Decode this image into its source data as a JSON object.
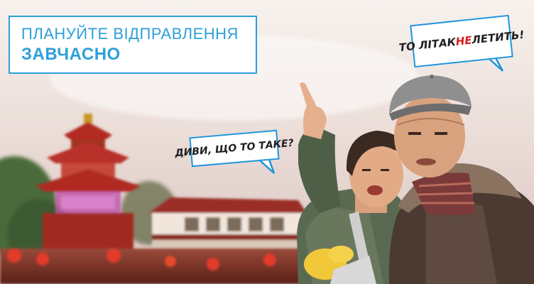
{
  "headline": {
    "line1": "ПЛАНУЙТЕ ВІДПРАВЛЕННЯ",
    "line2": "ЗАВЧАСНО"
  },
  "bubble_right": {
    "before": "ТО ЛІТАК ",
    "highlight": "НЕ",
    "after": " ЛЕТИТЬ!"
  },
  "bubble_left": {
    "text": "ДИВИ, ЩО ТО ТАКЕ?"
  },
  "colors": {
    "accent": "#2e9fd8",
    "negation": "#d81e1e"
  }
}
